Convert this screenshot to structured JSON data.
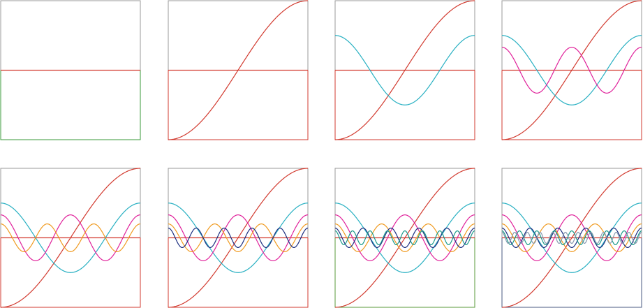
{
  "chart_data": {
    "type": "line",
    "title": "",
    "xlabel": "",
    "ylabel": "",
    "grid": false,
    "legend": "none",
    "x_range": [
      0,
      1
    ],
    "y_range": [
      -1,
      1
    ],
    "curves": [
      {
        "id": "constant",
        "kind": "constant",
        "level": 0.0,
        "amplitude": 0.0,
        "cycles": 0,
        "color": "#d23a2f"
      },
      {
        "id": "ramp",
        "kind": "cos-ramp",
        "level": 0.0,
        "amplitude": 1.0,
        "cycles": 0.5,
        "color": "#d23a2f"
      },
      {
        "id": "wave-1",
        "kind": "cosine",
        "level": 0.0,
        "amplitude": 0.5,
        "cycles": 1,
        "color": "#28b0c2"
      },
      {
        "id": "wave-2",
        "kind": "cosine",
        "level": 0.0,
        "amplitude": 0.33,
        "cycles": 2,
        "color": "#e0209a"
      },
      {
        "id": "wave-3",
        "kind": "cosine",
        "level": 0.0,
        "amplitude": 0.2,
        "cycles": 3,
        "color": "#f09a1f"
      },
      {
        "id": "wave-4",
        "kind": "cosine",
        "level": 0.0,
        "amplitude": 0.14,
        "cycles": 5,
        "color": "#1c2f80"
      },
      {
        "id": "wave-5",
        "kind": "cosine",
        "level": 0.0,
        "amplitude": 0.1,
        "cycles": 8,
        "color": "#1a9a8a"
      },
      {
        "id": "wave-6",
        "kind": "cosine",
        "level": 0.0,
        "amplitude": 0.08,
        "cycles": 11,
        "color": "#8899b0"
      }
    ],
    "panels": [
      {
        "curves": 1,
        "frame_color": "#3a9a3a"
      },
      {
        "curves": 2,
        "frame_color": "#d23a2f"
      },
      {
        "curves": 3,
        "frame_color": "#d23a2f"
      },
      {
        "curves": 4,
        "frame_color": "#d23a2f"
      },
      {
        "curves": 5,
        "frame_color": "#d23a2f"
      },
      {
        "curves": 6,
        "frame_color": "#d23a2f"
      },
      {
        "curves": 7,
        "frame_color": "#5a9a3a"
      },
      {
        "curves": 8,
        "frame_color": "#4a5a80"
      }
    ]
  }
}
